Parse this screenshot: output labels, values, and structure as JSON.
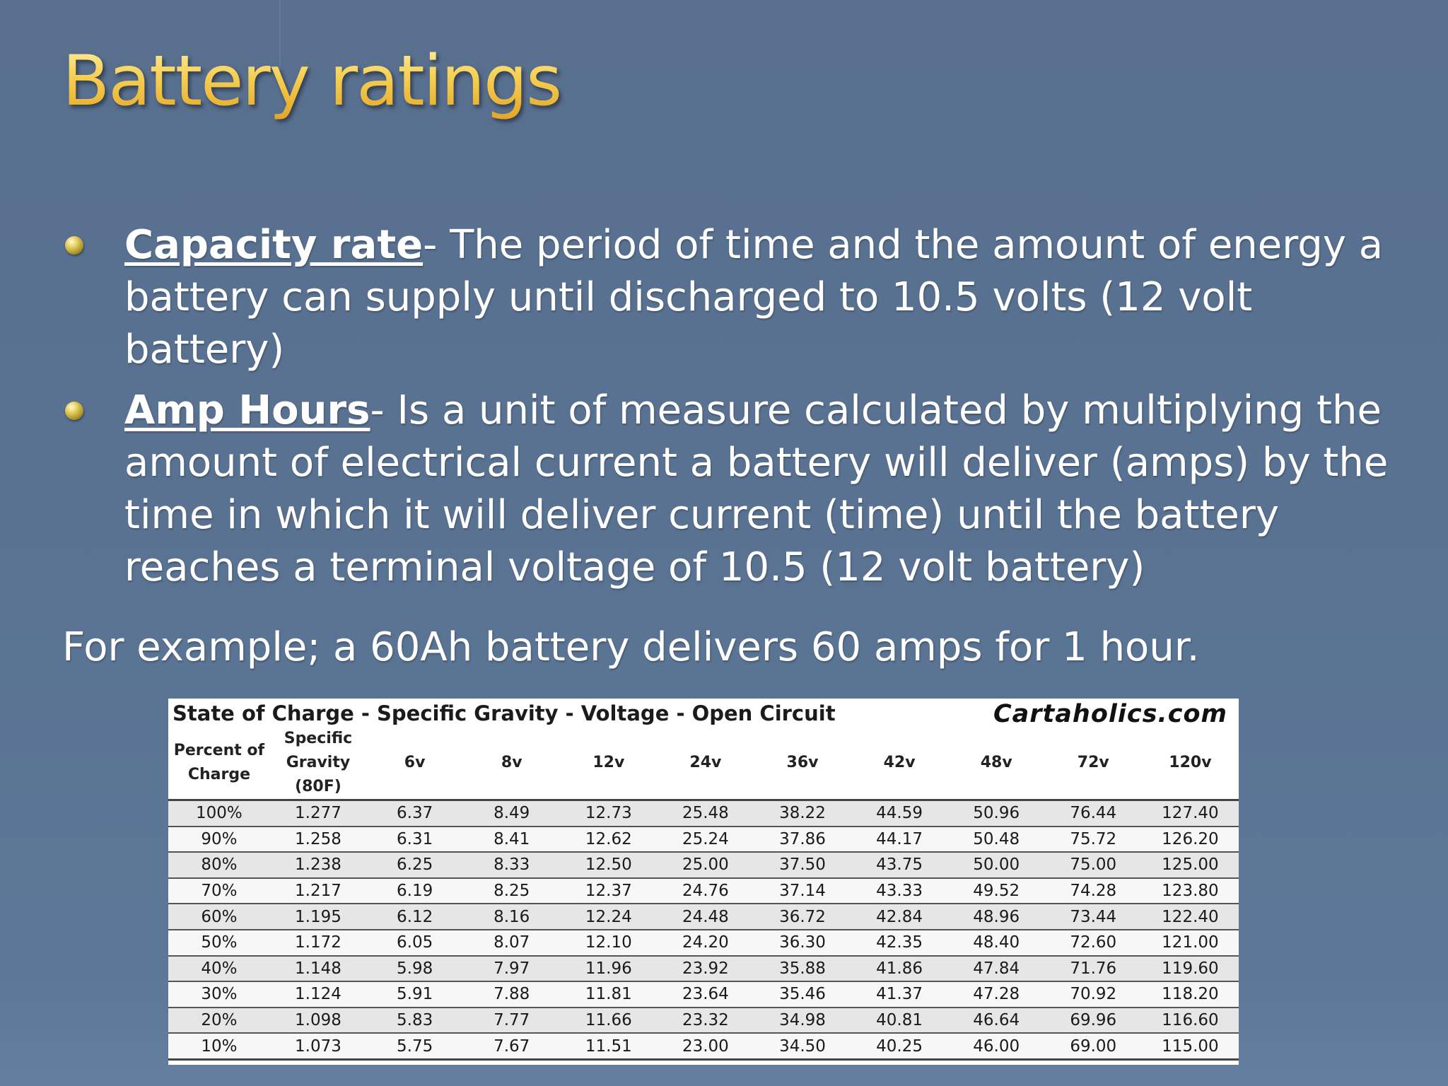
{
  "slide": {
    "title": "Battery ratings",
    "bullets": [
      {
        "term": "Capacity rate",
        "text": "- The period of time and the amount of energy a battery can supply until discharged to 10.5 volts (12 volt battery)"
      },
      {
        "term": "Amp Hours",
        "text": "- Is a unit of measure calculated by multiplying the amount of electrical current a battery will deliver (amps) by the time in which it will deliver current (time) until the battery reaches a terminal voltage of 10.5 (12 volt battery)"
      }
    ],
    "example": "For example; a 60Ah battery delivers 60 amps for 1 hour."
  },
  "table": {
    "title": "State of Charge - Specific Gravity - Voltage - Open Circuit",
    "brand": "Cartaholics.com",
    "headers": [
      "Percent of Charge",
      "Specific Gravity (80F)",
      "6v",
      "8v",
      "12v",
      "24v",
      "36v",
      "42v",
      "48v",
      "72v",
      "120v"
    ],
    "rows": [
      [
        "100%",
        "1.277",
        "6.37",
        "8.49",
        "12.73",
        "25.48",
        "38.22",
        "44.59",
        "50.96",
        "76.44",
        "127.40"
      ],
      [
        "90%",
        "1.258",
        "6.31",
        "8.41",
        "12.62",
        "25.24",
        "37.86",
        "44.17",
        "50.48",
        "75.72",
        "126.20"
      ],
      [
        "80%",
        "1.238",
        "6.25",
        "8.33",
        "12.50",
        "25.00",
        "37.50",
        "43.75",
        "50.00",
        "75.00",
        "125.00"
      ],
      [
        "70%",
        "1.217",
        "6.19",
        "8.25",
        "12.37",
        "24.76",
        "37.14",
        "43.33",
        "49.52",
        "74.28",
        "123.80"
      ],
      [
        "60%",
        "1.195",
        "6.12",
        "8.16",
        "12.24",
        "24.48",
        "36.72",
        "42.84",
        "48.96",
        "73.44",
        "122.40"
      ],
      [
        "50%",
        "1.172",
        "6.05",
        "8.07",
        "12.10",
        "24.20",
        "36.30",
        "42.35",
        "48.40",
        "72.60",
        "121.00"
      ],
      [
        "40%",
        "1.148",
        "5.98",
        "7.97",
        "11.96",
        "23.92",
        "35.88",
        "41.86",
        "47.84",
        "71.76",
        "119.60"
      ],
      [
        "30%",
        "1.124",
        "5.91",
        "7.88",
        "11.81",
        "23.64",
        "35.46",
        "41.37",
        "47.28",
        "70.92",
        "118.20"
      ],
      [
        "20%",
        "1.098",
        "5.83",
        "7.77",
        "11.66",
        "23.32",
        "34.98",
        "40.81",
        "46.64",
        "69.96",
        "116.60"
      ],
      [
        "10%",
        "1.073",
        "5.75",
        "7.67",
        "11.51",
        "23.00",
        "34.50",
        "40.25",
        "46.00",
        "69.00",
        "115.00"
      ]
    ]
  }
}
